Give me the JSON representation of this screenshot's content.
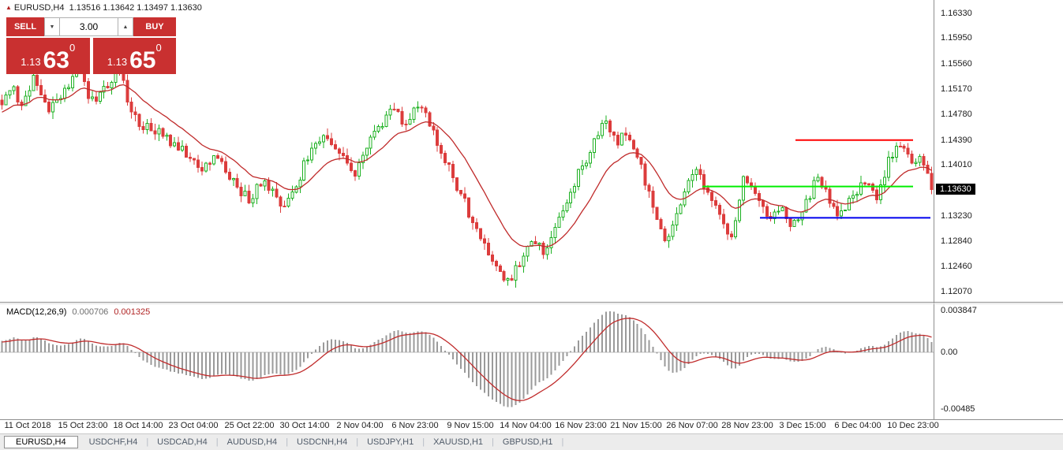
{
  "header": {
    "direction_icon": "▲",
    "symbol_line": "EURUSD,H4  1.13516 1.13642 1.13497 1.13630"
  },
  "trade_panel": {
    "sell_label": "SELL",
    "buy_label": "BUY",
    "volume": "3.00",
    "decrease_icon": "▼",
    "increase_icon": "▲",
    "sell_price": {
      "prefix": "1.13",
      "big": "63",
      "sup": "0"
    },
    "buy_price": {
      "prefix": "1.13",
      "big": "65",
      "sup": "0"
    }
  },
  "price_axis": {
    "current": "1.13630"
  },
  "tab_separator": "|",
  "tabs": [
    {
      "label": "EURUSD,H4",
      "active": true
    },
    {
      "label": "USDCHF,H4"
    },
    {
      "label": "USDCAD,H4"
    },
    {
      "label": "AUDUSD,H4"
    },
    {
      "label": "USDCNH,H4"
    },
    {
      "label": "USDJPY,H1"
    },
    {
      "label": "XAUUSD,H1"
    },
    {
      "label": "GBPUSD,H1"
    }
  ],
  "colors": {
    "bull": "#1cb021",
    "bear": "#dc3c3c",
    "hist": "#9a9a9a",
    "zero_line": "#bdbdbd"
  },
  "chart_data": {
    "type": "candlestick",
    "title": "EURUSD,H4",
    "ohlc_line": {
      "open": "1.13516",
      "high": "1.13642",
      "low": "1.13497",
      "close": "1.13630"
    },
    "y_axis": [
      "1.16330",
      "1.15950",
      "1.15560",
      "1.15170",
      "1.14780",
      "1.14390",
      "1.14010",
      "1.13230",
      "1.12840",
      "1.12460",
      "1.12070"
    ],
    "x_labels": [
      "11 Oct 2018",
      "15 Oct 23:00",
      "18 Oct 14:00",
      "23 Oct 04:00",
      "25 Oct 22:00",
      "30 Oct 14:00",
      "2 Nov 04:00",
      "6 Nov 23:00",
      "9 Nov 15:00",
      "14 Nov 04:00",
      "16 Nov 23:00",
      "21 Nov 15:00",
      "26 Nov 07:00",
      "28 Nov 23:00",
      "3 Dec 15:00",
      "6 Dec 04:00",
      "10 Dec 23:00"
    ],
    "candle_count": 238,
    "price_anchors": [
      [
        0.0,
        1.1495
      ],
      [
        0.01,
        1.1525
      ],
      [
        0.022,
        1.149
      ],
      [
        0.035,
        1.1542
      ],
      [
        0.05,
        1.148
      ],
      [
        0.065,
        1.1512
      ],
      [
        0.082,
        1.1548
      ],
      [
        0.096,
        1.1498
      ],
      [
        0.11,
        1.152
      ],
      [
        0.126,
        1.1548
      ],
      [
        0.142,
        1.1472
      ],
      [
        0.16,
        1.1455
      ],
      [
        0.18,
        1.144
      ],
      [
        0.198,
        1.1422
      ],
      [
        0.213,
        1.1392
      ],
      [
        0.23,
        1.1412
      ],
      [
        0.248,
        1.1378
      ],
      [
        0.266,
        1.1345
      ],
      [
        0.282,
        1.1382
      ],
      [
        0.298,
        1.1338
      ],
      [
        0.315,
        1.1362
      ],
      [
        0.332,
        1.1425
      ],
      [
        0.348,
        1.1448
      ],
      [
        0.364,
        1.1415
      ],
      [
        0.379,
        1.1388
      ],
      [
        0.394,
        1.144
      ],
      [
        0.408,
        1.1465
      ],
      [
        0.421,
        1.1495
      ],
      [
        0.434,
        1.1462
      ],
      [
        0.449,
        1.1502
      ],
      [
        0.464,
        1.1448
      ],
      [
        0.481,
        1.1398
      ],
      [
        0.499,
        1.1338
      ],
      [
        0.514,
        1.1296
      ],
      [
        0.529,
        1.1255
      ],
      [
        0.544,
        1.1222
      ],
      [
        0.558,
        1.1252
      ],
      [
        0.572,
        1.1288
      ],
      [
        0.586,
        1.1266
      ],
      [
        0.601,
        1.1322
      ],
      [
        0.618,
        1.1382
      ],
      [
        0.634,
        1.1425
      ],
      [
        0.649,
        1.1468
      ],
      [
        0.661,
        1.1432
      ],
      [
        0.674,
        1.1452
      ],
      [
        0.688,
        1.1398
      ],
      [
        0.702,
        1.133
      ],
      [
        0.715,
        1.1276
      ],
      [
        0.729,
        1.1342
      ],
      [
        0.744,
        1.1398
      ],
      [
        0.758,
        1.1362
      ],
      [
        0.772,
        1.1322
      ],
      [
        0.786,
        1.1292
      ],
      [
        0.799,
        1.1388
      ],
      [
        0.812,
        1.1352
      ],
      [
        0.825,
        1.132
      ],
      [
        0.838,
        1.1342
      ],
      [
        0.851,
        1.1306
      ],
      [
        0.864,
        1.1342
      ],
      [
        0.877,
        1.1382
      ],
      [
        0.89,
        1.1346
      ],
      [
        0.903,
        1.1322
      ],
      [
        0.916,
        1.1352
      ],
      [
        0.929,
        1.1382
      ],
      [
        0.941,
        1.1352
      ],
      [
        0.953,
        1.1402
      ],
      [
        0.963,
        1.1442
      ],
      [
        0.972,
        1.142
      ],
      [
        0.981,
        1.1398
      ],
      [
        0.99,
        1.1418
      ],
      [
        1.0,
        1.1363
      ]
    ],
    "hlines": [
      {
        "color": "#ff0000",
        "price": 1.1439,
        "from": 0.852,
        "to": 0.978
      },
      {
        "color": "#00ee00",
        "price": 1.1368,
        "from": 0.752,
        "to": 0.978
      },
      {
        "color": "#0000ee",
        "price": 1.132,
        "from": 0.814,
        "to": 0.997
      }
    ],
    "ma": {
      "period": 16,
      "color": "#c02b2b"
    },
    "macd": {
      "label": "MACD(12,26,9)",
      "value_main": "0.000706",
      "value_signal": "0.001325",
      "fast": 12,
      "slow": 26,
      "signal_period": 9,
      "axis": [
        "0.003847",
        "0.00",
        "-0.00485"
      ]
    }
  }
}
